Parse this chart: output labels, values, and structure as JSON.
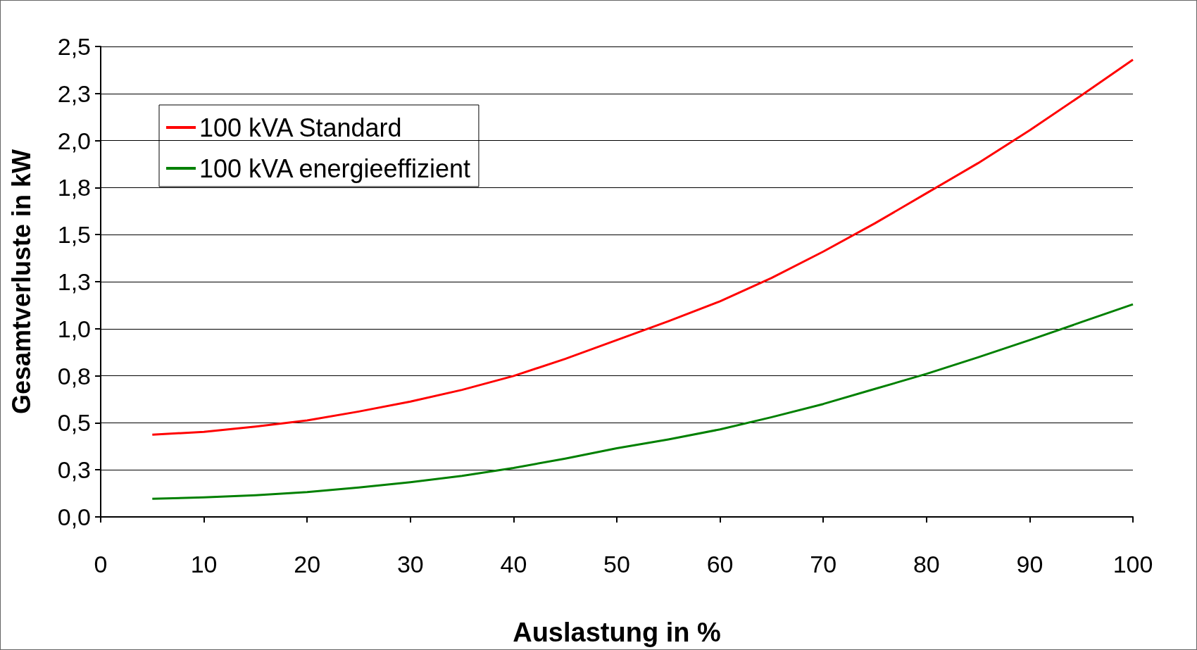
{
  "chart_data": {
    "type": "line",
    "xlabel": "Auslastung in %",
    "ylabel": "Gesamtverluste in kW",
    "xlim": [
      0,
      100
    ],
    "xticks": [
      0,
      10,
      20,
      30,
      40,
      50,
      60,
      70,
      80,
      90,
      100
    ],
    "ylim": [
      0,
      2.5
    ],
    "yticks": [
      {
        "value": 0,
        "label": "0,0"
      },
      {
        "value": 0.25,
        "label": "0,3"
      },
      {
        "value": 0.5,
        "label": "0,5"
      },
      {
        "value": 0.75,
        "label": "0,8"
      },
      {
        "value": 1,
        "label": "1,0"
      },
      {
        "value": 1.25,
        "label": "1,3"
      },
      {
        "value": 1.5,
        "label": "1,5"
      },
      {
        "value": 1.75,
        "label": "1,8"
      },
      {
        "value": 2,
        "label": "2,0"
      },
      {
        "value": 2.25,
        "label": "2,3"
      },
      {
        "value": 2.5,
        "label": "2,5"
      }
    ],
    "grid": "y",
    "legend": "top left",
    "marker": "none",
    "line_style": "solid",
    "x": [
      5,
      10,
      15,
      20,
      25,
      30,
      35,
      40,
      45,
      50,
      55,
      60,
      65,
      70,
      75,
      80,
      85,
      90,
      95,
      100
    ],
    "series": [
      {
        "name": "100 kVA Standard",
        "color": "#ff0000",
        "values": [
          0.437,
          0.452,
          0.48,
          0.513,
          0.56,
          0.613,
          0.675,
          0.749,
          0.84,
          0.94,
          1.04,
          1.146,
          1.27,
          1.41,
          1.56,
          1.72,
          1.88,
          2.055,
          2.24,
          2.43
        ]
      },
      {
        "name": "100 kVA energieeffizient",
        "color": "#008000",
        "values": [
          0.096,
          0.104,
          0.115,
          0.132,
          0.156,
          0.184,
          0.218,
          0.26,
          0.31,
          0.365,
          0.412,
          0.465,
          0.53,
          0.6,
          0.68,
          0.76,
          0.848,
          0.94,
          1.035,
          1.13
        ]
      }
    ]
  }
}
